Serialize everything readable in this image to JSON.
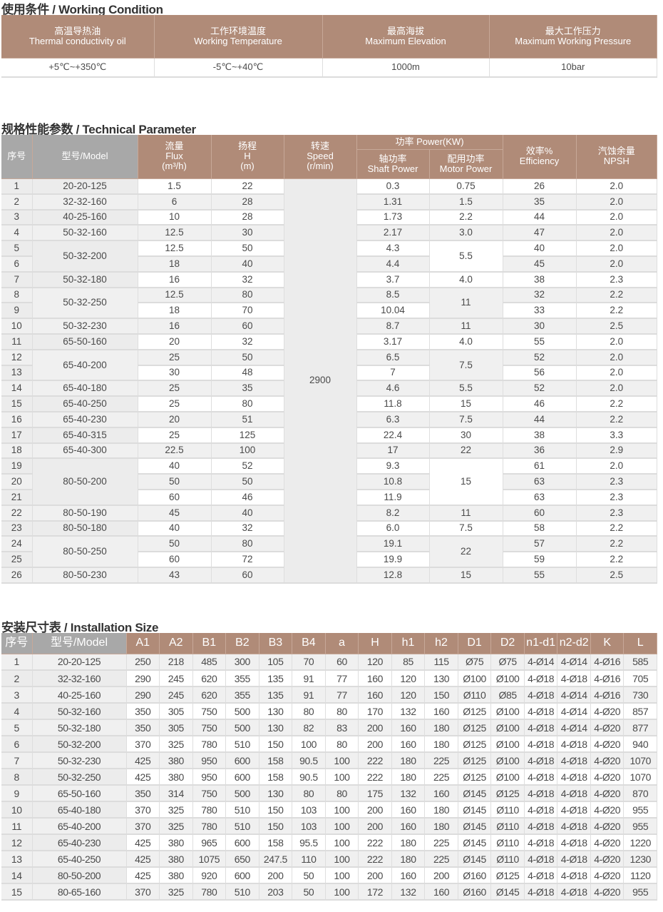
{
  "working_condition": {
    "title": "使用条件 / Working Condition",
    "headers": [
      {
        "cn": "高温导热油",
        "en": "Thermal conductivity oil"
      },
      {
        "cn": "工作环境温度",
        "en": "Working Temperature"
      },
      {
        "cn": "最高海拔",
        "en": "Maximum Elevation"
      },
      {
        "cn": "最大工作压力",
        "en": "Maximum Working Pressure"
      }
    ],
    "values": [
      "+5℃~+350℃",
      "-5℃~+40℃",
      "1000m",
      "10bar"
    ]
  },
  "technical": {
    "title": "规格性能参数 / Technical Parameter",
    "headers": {
      "seq": "序号",
      "model": "型号/Model",
      "flux": [
        "流量",
        "Flux",
        "(m³/h)"
      ],
      "head": [
        "扬程",
        "H",
        "(m)"
      ],
      "speed": [
        "转速",
        "Speed",
        "(r/min)"
      ],
      "power": "功率  Power(KW)",
      "shaft": [
        "轴功率",
        "Shaft Power"
      ],
      "motor": [
        "配用功率",
        "Motor Power"
      ],
      "eff": [
        "效率%",
        "Efficiency"
      ],
      "npsh": [
        "汽蚀余量",
        "NPSH"
      ]
    },
    "speed": "2900",
    "rows": [
      [
        "1",
        "20-20-125",
        "1.5",
        "22",
        "0.3",
        "0.75",
        "26",
        "2.0"
      ],
      [
        "2",
        "32-32-160",
        "6",
        "28",
        "1.31",
        "1.5",
        "35",
        "2.0"
      ],
      [
        "3",
        "40-25-160",
        "10",
        "28",
        "1.73",
        "2.2",
        "44",
        "2.0"
      ],
      [
        "4",
        "50-32-160",
        "12.5",
        "30",
        "2.17",
        "3.0",
        "47",
        "2.0"
      ],
      [
        "5",
        "50-32-200",
        "12.5",
        "50",
        "4.3",
        "5.5",
        "40",
        "2.0"
      ],
      [
        "6",
        "",
        "18",
        "40",
        "4.4",
        "",
        "45",
        "2.0"
      ],
      [
        "7",
        "50-32-180",
        "16",
        "32",
        "3.7",
        "4.0",
        "38",
        "2.3"
      ],
      [
        "8",
        "50-32-250",
        "12.5",
        "80",
        "8.5",
        "11",
        "32",
        "2.2"
      ],
      [
        "9",
        "",
        "18",
        "70",
        "10.04",
        "",
        "33",
        "2.2"
      ],
      [
        "10",
        "50-32-230",
        "16",
        "60",
        "8.7",
        "11",
        "30",
        "2.5"
      ],
      [
        "11",
        "65-50-160",
        "20",
        "32",
        "3.17",
        "4.0",
        "55",
        "2.0"
      ],
      [
        "12",
        "65-40-200",
        "25",
        "50",
        "6.5",
        "7.5",
        "52",
        "2.0"
      ],
      [
        "13",
        "",
        "30",
        "48",
        "7",
        "",
        "56",
        "2.0"
      ],
      [
        "14",
        "65-40-180",
        "25",
        "35",
        "4.6",
        "5.5",
        "52",
        "2.0"
      ],
      [
        "15",
        "65-40-250",
        "25",
        "80",
        "11.8",
        "15",
        "46",
        "2.2"
      ],
      [
        "16",
        "65-40-230",
        "20",
        "51",
        "6.3",
        "7.5",
        "44",
        "2.2"
      ],
      [
        "17",
        "65-40-315",
        "25",
        "125",
        "22.4",
        "30",
        "38",
        "3.3"
      ],
      [
        "18",
        "65-40-300",
        "22.5",
        "100",
        "17",
        "22",
        "36",
        "2.9"
      ],
      [
        "19",
        "80-50-200",
        "40",
        "52",
        "9.3",
        "15",
        "61",
        "2.0"
      ],
      [
        "20",
        "",
        "50",
        "50",
        "10.8",
        "",
        "63",
        "2.3"
      ],
      [
        "21",
        "",
        "60",
        "46",
        "11.9",
        "",
        "63",
        "2.3"
      ],
      [
        "22",
        "80-50-190",
        "45",
        "40",
        "8.2",
        "11",
        "60",
        "2.3"
      ],
      [
        "23",
        "80-50-180",
        "40",
        "32",
        "6.0",
        "7.5",
        "58",
        "2.2"
      ],
      [
        "24",
        "80-50-250",
        "50",
        "80",
        "19.1",
        "22",
        "57",
        "2.2"
      ],
      [
        "25",
        "",
        "60",
        "72",
        "19.9",
        "",
        "59",
        "2.2"
      ],
      [
        "26",
        "80-50-230",
        "43",
        "60",
        "12.8",
        "15",
        "55",
        "2.5"
      ]
    ]
  },
  "installation": {
    "title": "安装尺寸表 / Installation Size",
    "headers": [
      "序号",
      "型号/Model",
      "A1",
      "A2",
      "B1",
      "B2",
      "B3",
      "B4",
      "a",
      "H",
      "h1",
      "h2",
      "D1",
      "D2",
      "n1-d1",
      "n2-d2",
      "K",
      "L"
    ],
    "rows": [
      [
        "1",
        "20-20-125",
        "250",
        "218",
        "485",
        "300",
        "105",
        "70",
        "60",
        "120",
        "85",
        "115",
        "Ø75",
        "Ø75",
        "4-Ø14",
        "4-Ø14",
        "4-Ø16",
        "585"
      ],
      [
        "2",
        "32-32-160",
        "290",
        "245",
        "620",
        "355",
        "135",
        "91",
        "77",
        "160",
        "120",
        "130",
        "Ø100",
        "Ø100",
        "4-Ø18",
        "4-Ø18",
        "4-Ø16",
        "705"
      ],
      [
        "3",
        "40-25-160",
        "290",
        "245",
        "620",
        "355",
        "135",
        "91",
        "77",
        "160",
        "120",
        "150",
        "Ø110",
        "Ø85",
        "4-Ø18",
        "4-Ø14",
        "4-Ø16",
        "730"
      ],
      [
        "4",
        "50-32-160",
        "350",
        "305",
        "750",
        "500",
        "130",
        "80",
        "80",
        "170",
        "132",
        "160",
        "Ø125",
        "Ø100",
        "4-Ø18",
        "4-Ø14",
        "4-Ø20",
        "857"
      ],
      [
        "5",
        "50-32-180",
        "350",
        "305",
        "750",
        "500",
        "130",
        "82",
        "83",
        "200",
        "160",
        "180",
        "Ø125",
        "Ø100",
        "4-Ø18",
        "4-Ø14",
        "4-Ø20",
        "877"
      ],
      [
        "6",
        "50-32-200",
        "370",
        "325",
        "780",
        "510",
        "150",
        "100",
        "80",
        "200",
        "160",
        "180",
        "Ø125",
        "Ø100",
        "4-Ø18",
        "4-Ø18",
        "4-Ø20",
        "940"
      ],
      [
        "7",
        "50-32-230",
        "425",
        "380",
        "950",
        "600",
        "158",
        "90.5",
        "100",
        "222",
        "180",
        "225",
        "Ø125",
        "Ø100",
        "4-Ø18",
        "4-Ø18",
        "4-Ø20",
        "1070"
      ],
      [
        "8",
        "50-32-250",
        "425",
        "380",
        "950",
        "600",
        "158",
        "90.5",
        "100",
        "222",
        "180",
        "225",
        "Ø125",
        "Ø100",
        "4-Ø18",
        "4-Ø18",
        "4-Ø20",
        "1070"
      ],
      [
        "9",
        "65-50-160",
        "350",
        "314",
        "750",
        "500",
        "130",
        "80",
        "80",
        "175",
        "132",
        "160",
        "Ø145",
        "Ø125",
        "4-Ø18",
        "4-Ø18",
        "4-Ø20",
        "870"
      ],
      [
        "10",
        "65-40-180",
        "370",
        "325",
        "780",
        "510",
        "150",
        "103",
        "100",
        "200",
        "160",
        "180",
        "Ø145",
        "Ø110",
        "4-Ø18",
        "4-Ø18",
        "4-Ø20",
        "955"
      ],
      [
        "11",
        "65-40-200",
        "370",
        "325",
        "780",
        "510",
        "150",
        "103",
        "100",
        "200",
        "160",
        "180",
        "Ø145",
        "Ø110",
        "4-Ø18",
        "4-Ø18",
        "4-Ø20",
        "955"
      ],
      [
        "12",
        "65-40-230",
        "425",
        "380",
        "965",
        "600",
        "158",
        "95.5",
        "100",
        "222",
        "180",
        "225",
        "Ø145",
        "Ø110",
        "4-Ø18",
        "4-Ø18",
        "4-Ø20",
        "1220"
      ],
      [
        "13",
        "65-40-250",
        "425",
        "380",
        "1075",
        "650",
        "247.5",
        "110",
        "100",
        "222",
        "180",
        "225",
        "Ø145",
        "Ø110",
        "4-Ø18",
        "4-Ø18",
        "4-Ø20",
        "1230"
      ],
      [
        "14",
        "80-50-200",
        "425",
        "380",
        "920",
        "600",
        "200",
        "50",
        "100",
        "200",
        "160",
        "200",
        "Ø160",
        "Ø125",
        "4-Ø18",
        "4-Ø18",
        "4-Ø20",
        "1120"
      ],
      [
        "15",
        "80-65-160",
        "370",
        "325",
        "780",
        "510",
        "203",
        "50",
        "100",
        "172",
        "132",
        "160",
        "Ø160",
        "Ø145",
        "4-Ø18",
        "4-Ø18",
        "4-Ø20",
        "955"
      ]
    ]
  },
  "colors": {
    "header": "#b08b78",
    "header_gray": "#a8a8a8",
    "stripe": "#f0f0f0"
  }
}
